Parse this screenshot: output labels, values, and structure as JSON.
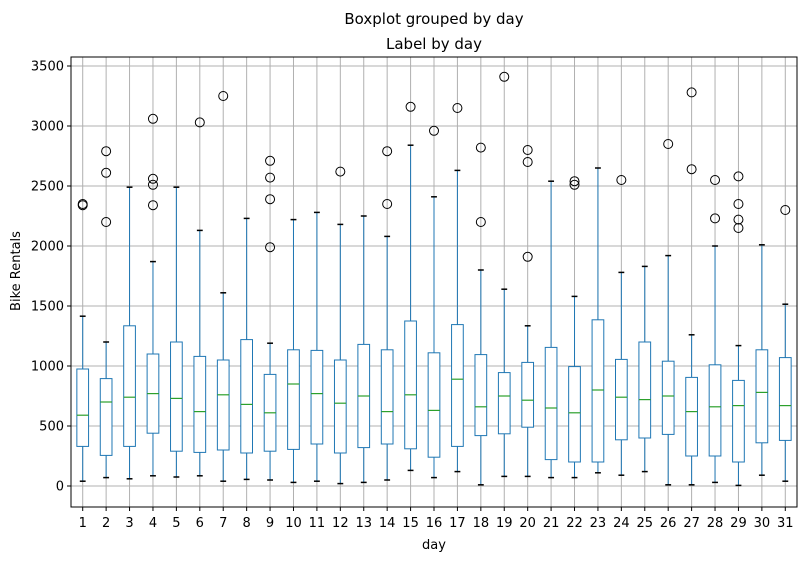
{
  "chart_data": {
    "type": "boxplot",
    "suptitle": "Boxplot grouped by day",
    "title": "Label by day",
    "xlabel": "day",
    "ylabel": "Bike Rentals",
    "ylim": [
      -175,
      3575
    ],
    "yticks": [
      0,
      500,
      1000,
      1500,
      2000,
      2500,
      3000,
      3500
    ],
    "grid": true,
    "colors": {
      "box": "#1f77b4",
      "median": "#2ca02c",
      "grid": "#b0b0b0",
      "frame": "#000000",
      "flier": "#000000"
    },
    "categories": [
      "1",
      "2",
      "3",
      "4",
      "5",
      "6",
      "7",
      "8",
      "9",
      "10",
      "11",
      "12",
      "13",
      "14",
      "15",
      "16",
      "17",
      "18",
      "19",
      "20",
      "21",
      "22",
      "23",
      "24",
      "25",
      "26",
      "27",
      "28",
      "29",
      "30",
      "31"
    ],
    "boxes": [
      {
        "min": 40,
        "q1": 330,
        "median": 590,
        "q3": 975,
        "max": 1415,
        "outliers": [
          2340,
          2350
        ]
      },
      {
        "min": 70,
        "q1": 255,
        "median": 700,
        "q3": 895,
        "max": 1200,
        "outliers": [
          2200,
          2610,
          2790
        ]
      },
      {
        "min": 60,
        "q1": 330,
        "median": 740,
        "q3": 1335,
        "max": 2490,
        "outliers": []
      },
      {
        "min": 85,
        "q1": 440,
        "median": 770,
        "q3": 1100,
        "max": 1870,
        "outliers": [
          2340,
          2510,
          2560,
          3060
        ]
      },
      {
        "min": 75,
        "q1": 290,
        "median": 730,
        "q3": 1200,
        "max": 2490,
        "outliers": []
      },
      {
        "min": 85,
        "q1": 280,
        "median": 620,
        "q3": 1080,
        "max": 2130,
        "outliers": [
          3030
        ]
      },
      {
        "min": 40,
        "q1": 300,
        "median": 760,
        "q3": 1050,
        "max": 1610,
        "outliers": [
          3250
        ]
      },
      {
        "min": 55,
        "q1": 275,
        "median": 680,
        "q3": 1220,
        "max": 2230,
        "outliers": []
      },
      {
        "min": 50,
        "q1": 290,
        "median": 610,
        "q3": 930,
        "max": 1190,
        "outliers": [
          1990,
          2390,
          2570,
          2710
        ]
      },
      {
        "min": 30,
        "q1": 305,
        "median": 850,
        "q3": 1135,
        "max": 2220,
        "outliers": []
      },
      {
        "min": 40,
        "q1": 350,
        "median": 770,
        "q3": 1130,
        "max": 2280,
        "outliers": []
      },
      {
        "min": 20,
        "q1": 275,
        "median": 690,
        "q3": 1050,
        "max": 2180,
        "outliers": [
          2620
        ]
      },
      {
        "min": 30,
        "q1": 320,
        "median": 750,
        "q3": 1180,
        "max": 2250,
        "outliers": []
      },
      {
        "min": 50,
        "q1": 350,
        "median": 620,
        "q3": 1135,
        "max": 2080,
        "outliers": [
          2350,
          2790
        ]
      },
      {
        "min": 130,
        "q1": 310,
        "median": 760,
        "q3": 1375,
        "max": 2840,
        "outliers": [
          3160
        ]
      },
      {
        "min": 70,
        "q1": 240,
        "median": 630,
        "q3": 1110,
        "max": 2410,
        "outliers": [
          2960
        ]
      },
      {
        "min": 120,
        "q1": 330,
        "median": 890,
        "q3": 1345,
        "max": 2630,
        "outliers": [
          3150
        ]
      },
      {
        "min": 10,
        "q1": 420,
        "median": 660,
        "q3": 1095,
        "max": 1800,
        "outliers": [
          2200,
          2820
        ]
      },
      {
        "min": 80,
        "q1": 435,
        "median": 750,
        "q3": 945,
        "max": 1640,
        "outliers": [
          3410
        ]
      },
      {
        "min": 80,
        "q1": 490,
        "median": 715,
        "q3": 1030,
        "max": 1335,
        "outliers": [
          1910,
          2700,
          2800
        ]
      },
      {
        "min": 70,
        "q1": 220,
        "median": 650,
        "q3": 1155,
        "max": 2540,
        "outliers": []
      },
      {
        "min": 70,
        "q1": 200,
        "median": 610,
        "q3": 995,
        "max": 1580,
        "outliers": [
          2510,
          2540
        ]
      },
      {
        "min": 110,
        "q1": 200,
        "median": 800,
        "q3": 1385,
        "max": 2650,
        "outliers": []
      },
      {
        "min": 90,
        "q1": 385,
        "median": 740,
        "q3": 1055,
        "max": 1780,
        "outliers": [
          2550
        ]
      },
      {
        "min": 120,
        "q1": 400,
        "median": 720,
        "q3": 1200,
        "max": 1830,
        "outliers": []
      },
      {
        "min": 10,
        "q1": 430,
        "median": 750,
        "q3": 1040,
        "max": 1920,
        "outliers": [
          2850
        ]
      },
      {
        "min": 10,
        "q1": 250,
        "median": 620,
        "q3": 905,
        "max": 1260,
        "outliers": [
          2640,
          3280
        ]
      },
      {
        "min": 30,
        "q1": 250,
        "median": 660,
        "q3": 1010,
        "max": 2000,
        "outliers": [
          2230,
          2550
        ]
      },
      {
        "min": 5,
        "q1": 200,
        "median": 670,
        "q3": 880,
        "max": 1170,
        "outliers": [
          2150,
          2220,
          2350,
          2580
        ]
      },
      {
        "min": 90,
        "q1": 360,
        "median": 780,
        "q3": 1135,
        "max": 2010,
        "outliers": []
      },
      {
        "min": 40,
        "q1": 380,
        "median": 670,
        "q3": 1070,
        "max": 1515,
        "outliers": [
          2300
        ]
      }
    ]
  }
}
